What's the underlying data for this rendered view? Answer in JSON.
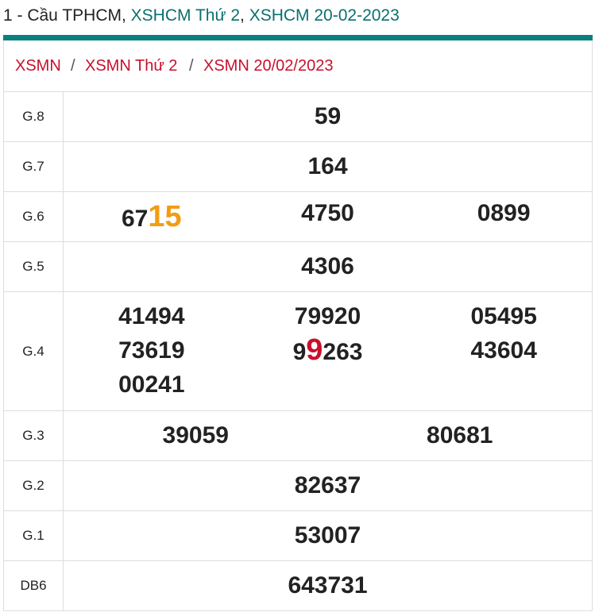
{
  "header": {
    "prefix": "1 - Cầu TPHCM, ",
    "link1": "XSHCM Thứ 2",
    "comma": ", ",
    "link2": "XSHCM 20-02-2023"
  },
  "breadcrumb": [
    "XSMN",
    "XSMN Thứ 2",
    "XSMN 20/02/2023"
  ],
  "breadcrumb_separator": "/",
  "colors": {
    "accent": "#097f80",
    "red": "#c8102e",
    "orange": "#f39c12"
  },
  "results": {
    "g8": {
      "label": "G.8",
      "value": "59"
    },
    "g7": {
      "label": "G.7",
      "value": "164"
    },
    "g6": {
      "label": "G.6",
      "values": [
        {
          "pre": "67",
          "hl": "15"
        },
        "4750",
        "0899"
      ]
    },
    "g5": {
      "label": "G.5",
      "value": "4306"
    },
    "g4": {
      "label": "G.4",
      "col1": [
        "41494",
        "73619",
        "00241"
      ],
      "col2": [
        "79920",
        {
          "pre": "9",
          "hl": "9",
          "post": "263"
        }
      ],
      "col3": [
        "05495",
        "43604"
      ]
    },
    "g3": {
      "label": "G.3",
      "values": [
        "39059",
        "80681"
      ]
    },
    "g2": {
      "label": "G.2",
      "value": "82637"
    },
    "g1": {
      "label": "G.1",
      "value": "53007"
    },
    "db": {
      "label": "DB6",
      "value": "643731"
    }
  }
}
